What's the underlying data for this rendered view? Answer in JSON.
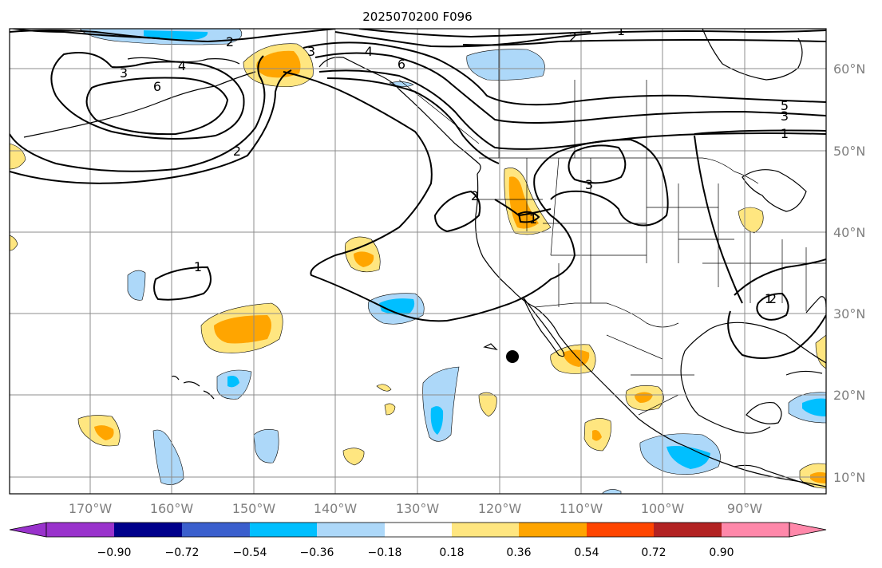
{
  "title": "2025070200 F096",
  "map": {
    "lon_labels": [
      "170°W",
      "160°W",
      "150°W",
      "140°W",
      "130°W",
      "120°W",
      "110°W",
      "100°W",
      "90°W"
    ],
    "lat_labels": [
      "60°N",
      "50°N",
      "40°N",
      "30°N",
      "20°N",
      "10°N"
    ],
    "gridlines": true,
    "marker": {
      "name": "black dot",
      "lon": -118.5,
      "lat": 24.5
    }
  },
  "contour_labels": [
    "1",
    "2",
    "3",
    "4",
    "6",
    "2",
    "3",
    "4",
    "6",
    "2",
    "1",
    "5",
    "3",
    "1",
    "3",
    "2",
    "1",
    "1",
    "2"
  ],
  "colorbar": {
    "tick_labels": [
      "−0.90",
      "−0.72",
      "−0.54",
      "−0.36",
      "−0.18",
      "0.18",
      "0.36",
      "0.54",
      "0.72",
      "0.90"
    ],
    "colors": [
      "#9932cc",
      "#00008b",
      "#3a5fcd",
      "#00bfff",
      "#add8f9",
      "#ffffff",
      "#ffe680",
      "#ffa500",
      "#ff4500",
      "#b22222",
      "#ff88aa"
    ],
    "extend": "both"
  }
}
